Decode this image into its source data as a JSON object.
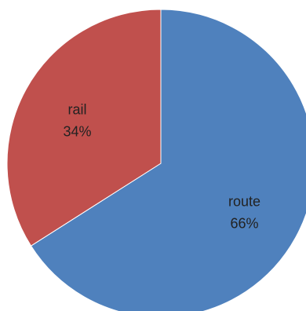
{
  "chart_data": {
    "type": "pie",
    "slices": [
      {
        "label": "route",
        "percent_label": "66%",
        "value": 66,
        "color": "#4f81bd"
      },
      {
        "label": "rail",
        "percent_label": "34%",
        "value": 34,
        "color": "#c0504d"
      }
    ],
    "start_angle_deg": 0,
    "direction": "clockwise",
    "legend": "none"
  }
}
